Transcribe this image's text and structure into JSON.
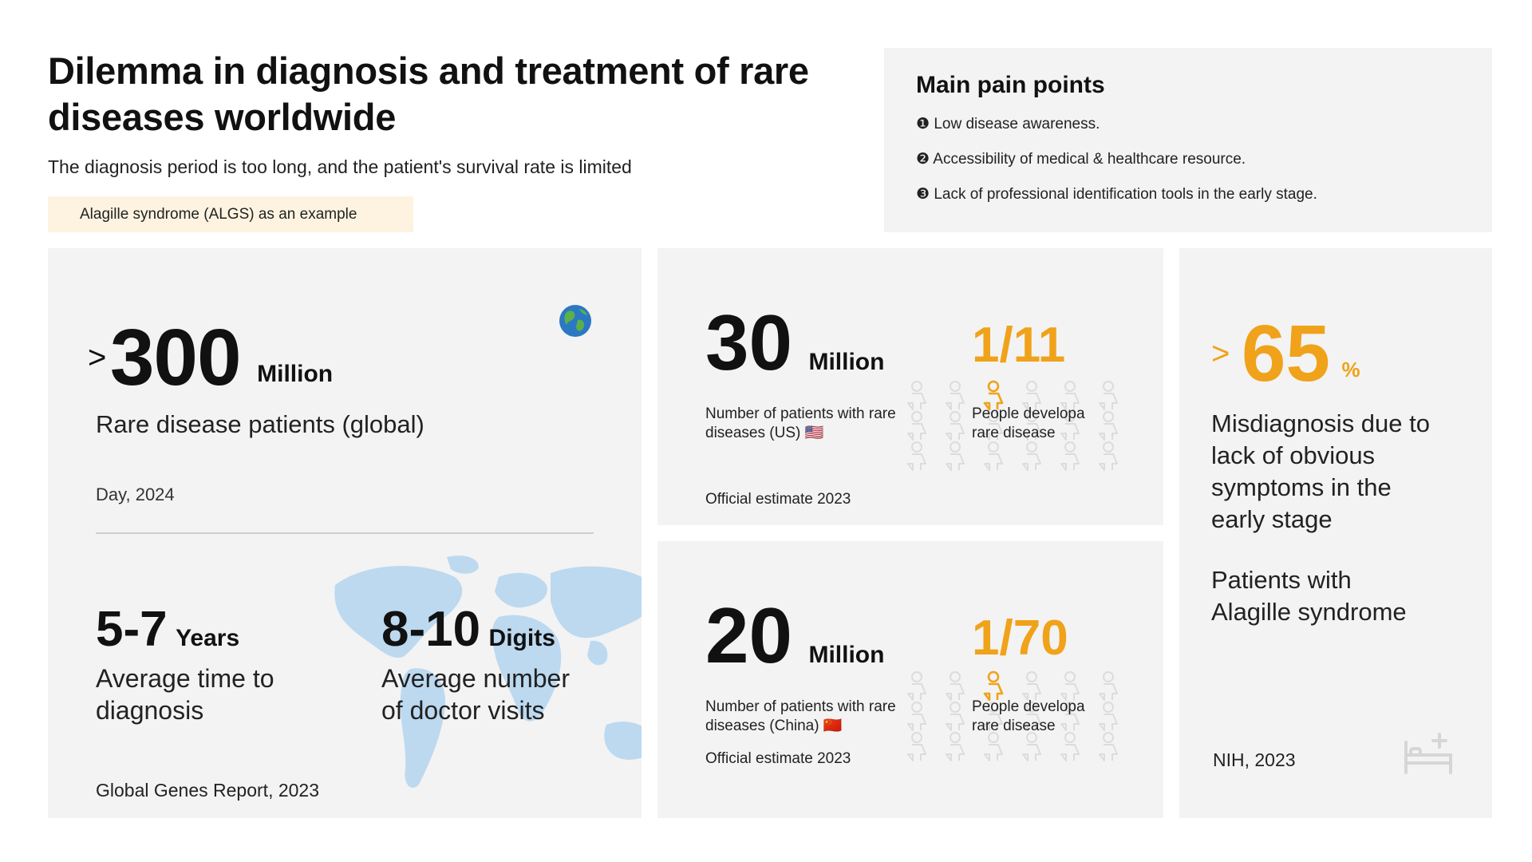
{
  "header": {
    "title": "Dilemma in diagnosis and treatment of rare diseases worldwide",
    "subtitle": "The diagnosis period is too long, and the patient's survival rate is limited",
    "example_tag": "Alagille syndrome (ALGS) as an example"
  },
  "pain_points": {
    "title": "Main pain points",
    "items": [
      {
        "marker": "❶",
        "text": "Low disease awareness."
      },
      {
        "marker": "❷",
        "text": "Accessibility of medical & healthcare resource."
      },
      {
        "marker": "❸",
        "text": "Lack of professional identification tools in the early stage."
      }
    ]
  },
  "global_card": {
    "prefix": ">",
    "number": "300",
    "unit": "Million",
    "label": "Rare disease patients (global)",
    "source": "Day, 2024",
    "icon": "globe-icon",
    "stats": [
      {
        "number": "5-7",
        "unit": "Years",
        "label_line1": "Average time to",
        "label_line2": "diagnosis"
      },
      {
        "number": "8-10",
        "unit": "Digits",
        "label_line1": "Average number",
        "label_line2": "of doctor visits"
      }
    ],
    "bottom_source": "Global Genes Report, 2023",
    "map_color": "#bcd9f0"
  },
  "us_card": {
    "number": "30",
    "unit": "Million",
    "label_line1": "Number of patients with rare",
    "label_line2": "diseases (US)",
    "flag": "🇺🇸",
    "ratio": "1/11",
    "ratio_label_line1": "People developa",
    "ratio_label_line2": "rare disease",
    "source": "Official estimate 2023"
  },
  "cn_card": {
    "number": "20",
    "unit": "Million",
    "label_line1": "Number of patients with rare",
    "label_line2": "diseases (China)",
    "flag": "🇨🇳",
    "ratio": "1/70",
    "ratio_label_line1": "People developa",
    "ratio_label_line2": "rare disease",
    "source": "Official estimate 2023"
  },
  "misdiagnosis_card": {
    "prefix": ">",
    "number": "65",
    "unit": "%",
    "label_lines": [
      "Misdiagnosis due to",
      "lack of obvious",
      "symptoms in the",
      "early stage"
    ],
    "patients_lines": [
      "Patients with",
      "Alagille syndrome"
    ],
    "source": "NIH, 2023",
    "icon": "hospital-bed-icon"
  },
  "colors": {
    "accent": "#f0a21a",
    "panel_bg": "#f3f3f3",
    "tag_bg": "#fdf3e0",
    "person_outline": "#dcdcdc",
    "map": "#bcd9f0"
  }
}
